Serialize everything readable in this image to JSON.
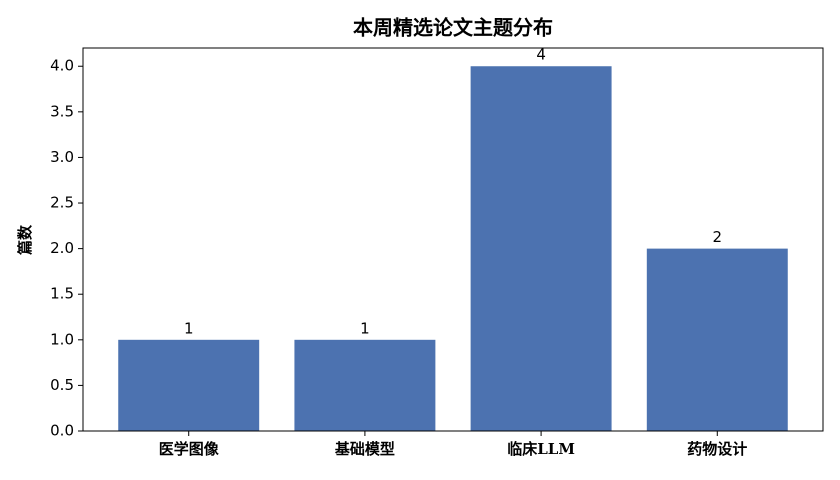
{
  "chart_data": {
    "type": "bar",
    "title": "本周精选论文主题分布",
    "ylabel": "篇数",
    "categories": [
      "医学图像",
      "基础模型",
      "临床LLM",
      "药物设计"
    ],
    "values": [
      1,
      1,
      4,
      2
    ],
    "color": "#4c72b0",
    "ylim": [
      0,
      4.2
    ],
    "yticks": [
      {
        "value": 0,
        "label": "0.0"
      },
      {
        "value": 0.5,
        "label": "0.5"
      },
      {
        "value": 1,
        "label": "1.0"
      },
      {
        "value": 1.5,
        "label": "1.5"
      },
      {
        "value": 2,
        "label": "2.0"
      },
      {
        "value": 2.5,
        "label": "2.5"
      },
      {
        "value": 3,
        "label": "3.0"
      },
      {
        "value": 3.5,
        "label": "3.5"
      },
      {
        "value": 4,
        "label": "4.0"
      }
    ]
  }
}
